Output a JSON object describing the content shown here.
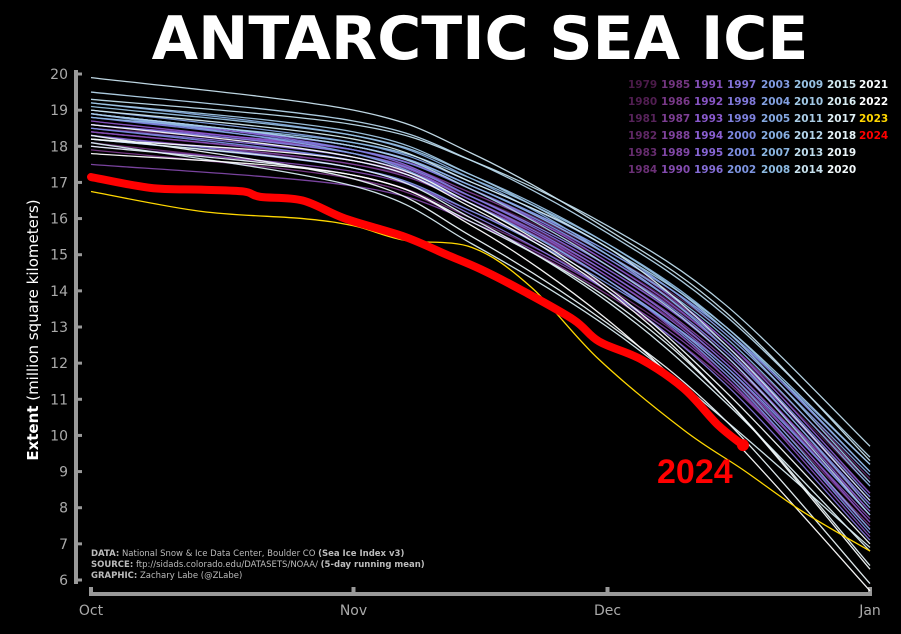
{
  "title": "ANTARCTIC SEA ICE",
  "chart_data": {
    "type": "line",
    "title": "ANTARCTIC SEA ICE",
    "ylabel_bold": "Extent",
    "ylabel_rest": " (million square kilometers)",
    "xlabel": "",
    "ylim": [
      6,
      20
    ],
    "yticks": [
      6,
      7,
      8,
      9,
      10,
      11,
      12,
      13,
      14,
      15,
      16,
      17,
      18,
      19,
      20
    ],
    "xlim_days": [
      0,
      92
    ],
    "xticks": [
      {
        "label": "Oct",
        "day": 0
      },
      {
        "label": "Nov",
        "day": 31
      },
      {
        "label": "Dec",
        "day": 61
      },
      {
        "label": "Jan",
        "day": 92
      }
    ],
    "grid": false,
    "legend_position": "top-right",
    "background": "#000000",
    "highlight_color_2024": "#ff0000",
    "highlight_color_2023": "#ffd700",
    "color_scale_stops": [
      "#4a1a48",
      "#7a3a8a",
      "#8a5ad0",
      "#7a8ae0",
      "#8ab8e0",
      "#d0e8f0",
      "#ffffff"
    ],
    "history_days": [
      0,
      31,
      45,
      61,
      75,
      92
    ],
    "history": [
      {
        "year": "1979",
        "values": [
          18.3,
          17.5,
          16.6,
          14.8,
          12.5,
          8.6
        ]
      },
      {
        "year": "1980",
        "values": [
          18.7,
          17.8,
          16.6,
          14.7,
          12.2,
          8.0
        ]
      },
      {
        "year": "1981",
        "values": [
          18.6,
          17.7,
          16.5,
          14.6,
          12.3,
          8.4
        ]
      },
      {
        "year": "1982",
        "values": [
          18.5,
          17.9,
          16.8,
          15.0,
          12.8,
          8.8
        ]
      },
      {
        "year": "1983",
        "values": [
          18.4,
          17.6,
          16.6,
          14.7,
          12.4,
          8.3
        ]
      },
      {
        "year": "1984",
        "values": [
          18.1,
          17.2,
          16.0,
          14.1,
          11.7,
          7.6
        ]
      },
      {
        "year": "1985",
        "values": [
          18.4,
          17.6,
          16.4,
          14.4,
          12.0,
          7.9
        ]
      },
      {
        "year": "1986",
        "values": [
          17.9,
          17.1,
          15.9,
          13.9,
          11.5,
          7.5
        ]
      },
      {
        "year": "1987",
        "values": [
          18.6,
          17.8,
          16.7,
          14.9,
          12.6,
          8.7
        ]
      },
      {
        "year": "1988",
        "values": [
          18.3,
          17.5,
          16.4,
          14.5,
          12.1,
          8.1
        ]
      },
      {
        "year": "1989",
        "values": [
          17.5,
          16.9,
          15.9,
          14.0,
          11.6,
          7.4
        ]
      },
      {
        "year": "1990",
        "values": [
          18.0,
          17.3,
          16.2,
          14.3,
          11.8,
          7.7
        ]
      },
      {
        "year": "1991",
        "values": [
          18.4,
          17.6,
          16.4,
          14.3,
          11.6,
          7.2
        ]
      },
      {
        "year": "1992",
        "values": [
          18.7,
          17.8,
          16.5,
          14.4,
          11.9,
          7.6
        ]
      },
      {
        "year": "1993",
        "values": [
          18.6,
          17.9,
          16.8,
          14.8,
          12.4,
          8.2
        ]
      },
      {
        "year": "1994",
        "values": [
          18.8,
          18.0,
          16.9,
          15.0,
          12.6,
          8.4
        ]
      },
      {
        "year": "1995",
        "values": [
          18.9,
          17.9,
          16.6,
          14.6,
          12.2,
          7.9
        ]
      },
      {
        "year": "1996",
        "values": [
          18.5,
          17.7,
          16.5,
          14.5,
          12.0,
          7.8
        ]
      },
      {
        "year": "1997",
        "values": [
          18.3,
          17.4,
          16.1,
          14.0,
          11.4,
          7.1
        ]
      },
      {
        "year": "1998",
        "values": [
          18.9,
          18.0,
          16.9,
          15.1,
          12.9,
          9.0
        ]
      },
      {
        "year": "1999",
        "values": [
          18.6,
          17.8,
          16.6,
          14.7,
          12.3,
          8.1
        ]
      },
      {
        "year": "2000",
        "values": [
          18.8,
          17.9,
          16.8,
          14.9,
          12.5,
          8.3
        ]
      },
      {
        "year": "2001",
        "values": [
          18.5,
          17.6,
          16.4,
          14.3,
          11.7,
          7.3
        ]
      },
      {
        "year": "2002",
        "values": [
          18.2,
          17.4,
          16.2,
          14.2,
          11.9,
          7.8
        ]
      },
      {
        "year": "2003",
        "values": [
          18.9,
          18.0,
          16.9,
          15.1,
          12.9,
          9.2
        ]
      },
      {
        "year": "2004",
        "values": [
          19.0,
          18.1,
          17.0,
          15.2,
          12.8,
          8.9
        ]
      },
      {
        "year": "2005",
        "values": [
          18.9,
          17.8,
          16.4,
          14.3,
          11.8,
          7.4
        ]
      },
      {
        "year": "2006",
        "values": [
          19.2,
          18.3,
          17.1,
          15.0,
          12.4,
          8.0
        ]
      },
      {
        "year": "2007",
        "values": [
          18.9,
          18.0,
          16.9,
          15.0,
          12.7,
          8.6
        ]
      },
      {
        "year": "2008",
        "values": [
          18.8,
          18.1,
          17.1,
          15.3,
          13.0,
          9.0
        ]
      },
      {
        "year": "2009",
        "values": [
          19.1,
          18.3,
          17.2,
          15.3,
          12.9,
          8.7
        ]
      },
      {
        "year": "2010",
        "values": [
          19.2,
          18.4,
          17.2,
          15.2,
          13.0,
          9.2
        ]
      },
      {
        "year": "2011",
        "values": [
          18.9,
          18.0,
          16.8,
          14.7,
          12.2,
          7.8
        ]
      },
      {
        "year": "2012",
        "values": [
          19.5,
          18.7,
          17.6,
          15.6,
          13.3,
          9.4
        ]
      },
      {
        "year": "2013",
        "values": [
          19.3,
          18.6,
          17.6,
          15.8,
          13.6,
          9.7
        ]
      },
      {
        "year": "2014",
        "values": [
          19.9,
          19.0,
          17.8,
          15.7,
          13.4,
          9.3
        ]
      },
      {
        "year": "2015",
        "values": [
          19.0,
          18.2,
          17.0,
          15.2,
          12.5,
          8.2
        ]
      },
      {
        "year": "2016",
        "values": [
          18.1,
          16.9,
          15.3,
          13.0,
          10.4,
          6.9
        ]
      },
      {
        "year": "2017",
        "values": [
          18.2,
          17.4,
          16.0,
          13.7,
          10.9,
          6.8
        ]
      },
      {
        "year": "2018",
        "values": [
          18.0,
          17.2,
          15.9,
          13.8,
          11.0,
          6.4
        ]
      },
      {
        "year": "2019",
        "values": [
          18.3,
          17.1,
          15.5,
          13.1,
          10.4,
          5.9
        ]
      },
      {
        "year": "2020",
        "values": [
          18.6,
          17.7,
          16.4,
          14.1,
          11.2,
          7.0
        ]
      },
      {
        "year": "2021",
        "values": [
          18.2,
          17.6,
          16.3,
          14.0,
          11.0,
          6.3
        ]
      },
      {
        "year": "2022",
        "values": [
          17.8,
          17.2,
          15.8,
          13.2,
          10.1,
          5.7
        ]
      }
    ],
    "series_2023": {
      "name": "2023",
      "days": [
        0,
        13,
        25,
        31,
        37,
        45,
        52,
        60,
        70,
        77,
        84,
        92
      ],
      "values": [
        16.75,
        16.2,
        16.0,
        15.8,
        15.4,
        15.2,
        14.1,
        12.1,
        10.15,
        9.05,
        7.9,
        6.8
      ]
    },
    "series_2024": {
      "name": "2024",
      "days": [
        0,
        7,
        13,
        18,
        20,
        25,
        30,
        37,
        42,
        46,
        51,
        57,
        60,
        65,
        70,
        74,
        77
      ],
      "values": [
        17.15,
        16.85,
        16.8,
        16.75,
        16.6,
        16.5,
        16.0,
        15.5,
        15.0,
        14.6,
        14.0,
        13.2,
        12.6,
        12.1,
        11.3,
        10.3,
        9.73
      ]
    },
    "annotation": "2024"
  },
  "legend_years": [
    "1979",
    "1980",
    "1981",
    "1982",
    "1983",
    "1984",
    "1985",
    "1986",
    "1987",
    "1988",
    "1989",
    "1990",
    "1991",
    "1992",
    "1993",
    "1994",
    "1995",
    "1996",
    "1997",
    "1998",
    "1999",
    "2000",
    "2001",
    "2002",
    "2003",
    "2004",
    "2005",
    "2006",
    "2007",
    "2008",
    "2009",
    "2010",
    "2011",
    "2012",
    "2013",
    "2014",
    "2015",
    "2016",
    "2017",
    "2018",
    "2019",
    "2020",
    "2021",
    "2022",
    "2023",
    "2024"
  ],
  "footnote": {
    "data_label": "DATA:",
    "data_text": " National Snow & Ice Data Center, Boulder CO ",
    "data_bold": "(Sea Ice Index v3)",
    "source_label": "SOURCE:",
    "source_text": " ftp://sidads.colorado.edu/DATASETS/NOAA/ ",
    "source_bold": "(5-day running mean)",
    "graphic_label": "GRAPHIC:",
    "graphic_text": " Zachary Labe (@ZLabe)"
  }
}
